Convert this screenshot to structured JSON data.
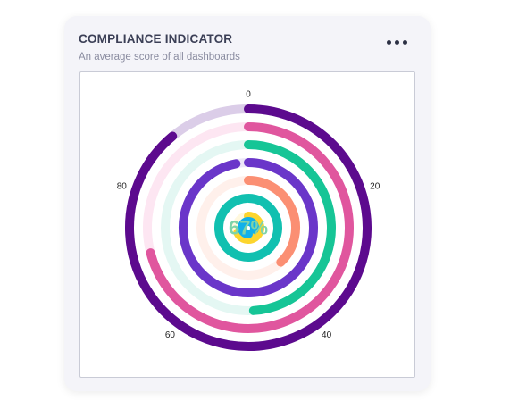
{
  "card": {
    "title": "COMPLIANCE INDICATOR",
    "subtitle": "An average score of all dashboards",
    "menu_icon": "more-horizontal-icon"
  },
  "chart_data": {
    "type": "radial-bar",
    "center_label": "67%",
    "center_value": 67,
    "center_color": "#7ed3a8",
    "axis": {
      "min": 0,
      "max": 100,
      "ticks": [
        {
          "value": 0,
          "label": "0"
        },
        {
          "value": 20,
          "label": "20"
        },
        {
          "value": 40,
          "label": "40"
        },
        {
          "value": 60,
          "label": "60"
        },
        {
          "value": 80,
          "label": "80"
        }
      ]
    },
    "series": [
      {
        "value": 89,
        "color": "#5c0a8e",
        "track": "#dbcde8"
      },
      {
        "value": 71,
        "color": "#e0569e",
        "track": "#fde6f2"
      },
      {
        "value": 49,
        "color": "#16c596",
        "track": "#e4f7f3"
      },
      {
        "value": 97,
        "color": "#6a36c9",
        "track": "#ece6f8"
      },
      {
        "value": 38,
        "color": "#fb8f73",
        "track": "#fff0eb"
      },
      {
        "value": 99,
        "color": "#11c0b0",
        "track": "#e3f7f5"
      },
      {
        "value": 68,
        "color": "#fcd52e",
        "track": "#fff8de"
      },
      {
        "value": 79,
        "color": "#11b0e9",
        "track": "#e2f5fd"
      }
    ]
  }
}
